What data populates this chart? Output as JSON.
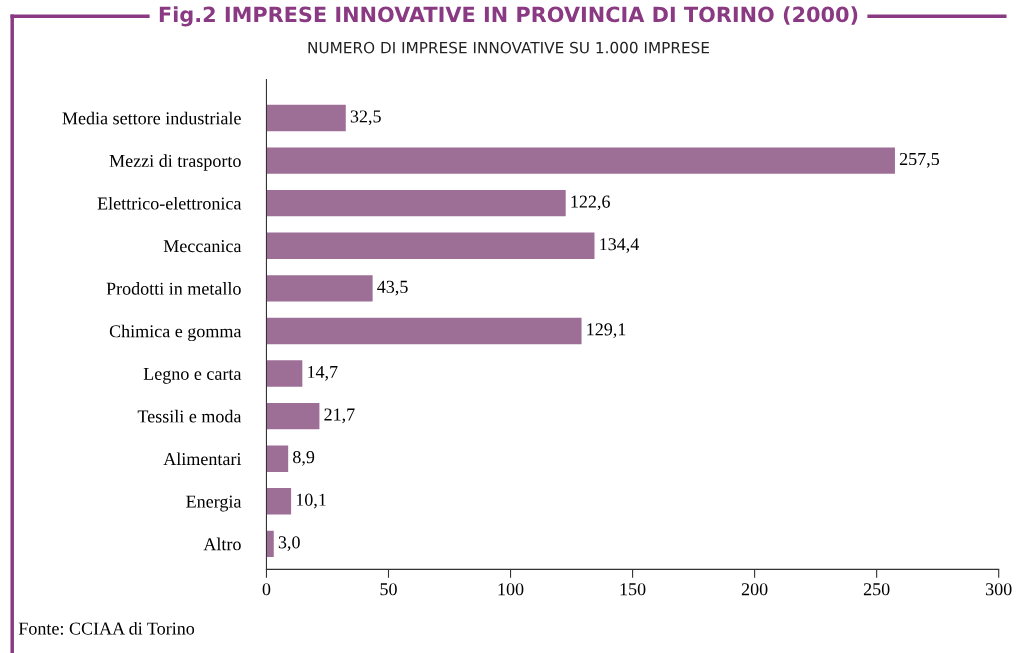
{
  "chart_data": {
    "type": "bar",
    "orientation": "horizontal",
    "title": "Fig.2 IMPRESE INNOVATIVE IN PROVINCIA DI TORINO (2000)",
    "subtitle": "NUMERO DI IMPRESE INNOVATIVE SU 1.000 IMPRESE",
    "categories": [
      "Media settore industriale",
      "Mezzi di trasporto",
      "Elettrico-elettronica",
      "Meccanica",
      "Prodotti in metallo",
      "Chimica e gomma",
      "Legno e carta",
      "Tessili e moda",
      "Alimentari",
      "Energia",
      "Altro"
    ],
    "values": [
      32.5,
      257.5,
      122.6,
      134.4,
      43.5,
      129.1,
      14.7,
      21.7,
      8.9,
      10.1,
      3.0
    ],
    "value_labels": [
      "32,5",
      "257,5",
      "122,6",
      "134,4",
      "43,5",
      "129,1",
      "14,7",
      "21,7",
      "8,9",
      "10,1",
      "3,0"
    ],
    "color": "#9e6f96",
    "xlim": [
      0,
      300
    ],
    "xticks": [
      0,
      50,
      100,
      150,
      200,
      250,
      300
    ],
    "grid": false,
    "legend": false,
    "annotations": [
      "Fonte: CCIAA di Torino"
    ]
  }
}
